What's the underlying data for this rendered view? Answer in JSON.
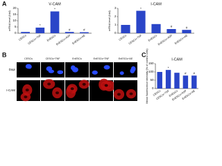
{
  "panel_labels": [
    "A",
    "B",
    "C"
  ],
  "chart_data": [
    {
      "type": "bar",
      "title": "V-CAM",
      "y_label": "mRNA level (fold)",
      "categories": [
        "CESCs",
        "CESCs+TNF",
        "EnESCs",
        "EnESCs+ASP",
        "EnESCs+AE"
      ],
      "values": [
        1,
        4.5,
        17.5,
        1,
        0.8
      ],
      "markers": [
        null,
        "*",
        "*",
        "#",
        "#"
      ],
      "color": "#2a45c8",
      "ylim": [
        0,
        20
      ],
      "yticks": [
        0,
        5,
        10,
        15,
        20
      ]
    },
    {
      "type": "bar",
      "title": "I-CAM",
      "y_label": "mRNA level (fold)",
      "categories": [
        "CESCs",
        "CESCs+TNF",
        "EnESCs",
        "EnESCs+ASP",
        "EnESCs+AE"
      ],
      "values": [
        1,
        2.7,
        1.1,
        0.5,
        0.4
      ],
      "markers": [
        null,
        "*",
        null,
        "#",
        "#"
      ],
      "color": "#2a45c8",
      "ylim": [
        0,
        3
      ],
      "yticks": [
        0,
        1,
        2,
        3
      ]
    },
    {
      "type": "bar",
      "title": "I-CAM",
      "y_label": "Mean fluorescence intensity (% of control cells)",
      "categories": [
        "CESCs",
        "CESCs+TNF",
        "EnESCs",
        "EnESCs+ASP",
        "EnESCs+AE"
      ],
      "values": [
        100,
        112,
        95,
        78,
        78
      ],
      "markers": [
        null,
        "*",
        null,
        "#",
        "#"
      ],
      "color": "#2a45c8",
      "ylim": [
        0,
        150
      ],
      "yticks": [
        0,
        50,
        100,
        150
      ]
    }
  ],
  "micrographs": {
    "columns": [
      "CESCs",
      "CESCs+TNF",
      "EnESCs",
      "EnESCs+TNF",
      "EnESCs+AE"
    ],
    "rows": [
      "Dapi",
      "I-CAM"
    ]
  }
}
